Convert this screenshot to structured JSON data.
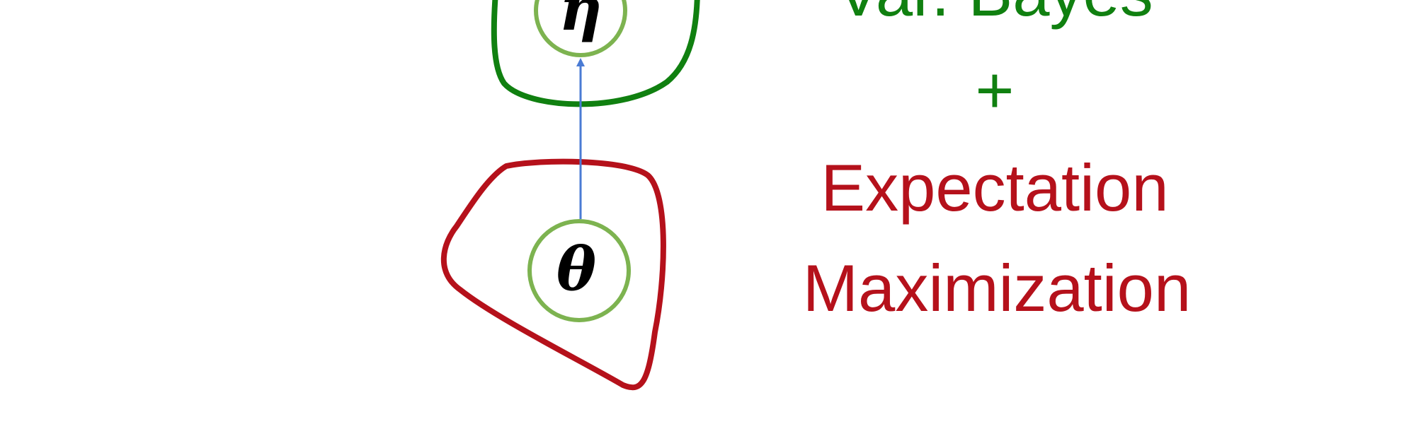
{
  "nodes": {
    "eta": {
      "symbol": "η"
    },
    "theta": {
      "symbol": "θ"
    }
  },
  "labels": {
    "line1": "Var. Bayes",
    "plus": "+",
    "line3": "Expectation",
    "line4": "Maximization"
  },
  "colors": {
    "green_dark": "#108010",
    "green_light": "#7DB350",
    "red": "#B5111B",
    "arrow_blue": "#4A7BD4"
  }
}
